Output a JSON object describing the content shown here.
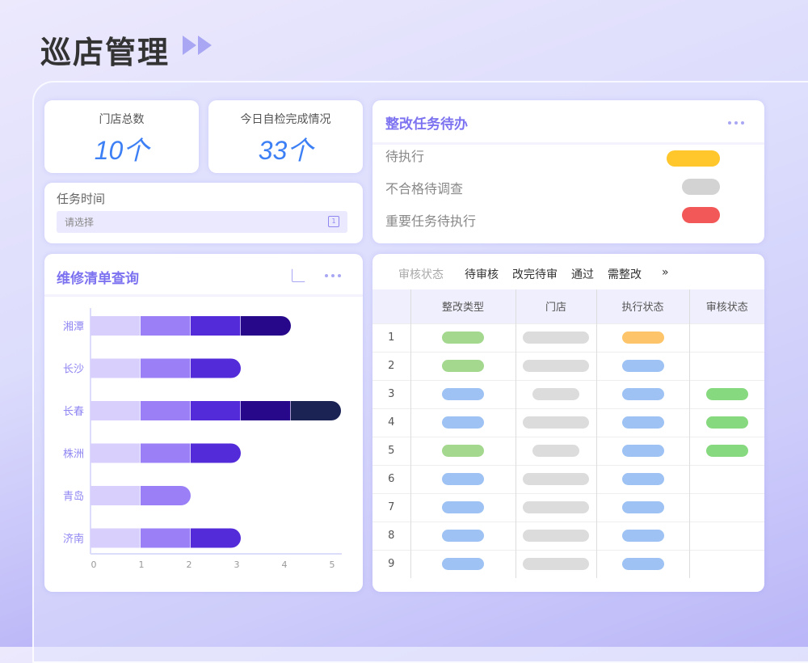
{
  "page": {
    "title": "巡店管理"
  },
  "stats": [
    {
      "label": "门店总数",
      "value": "10个"
    },
    {
      "label": "今日自检完成情况",
      "value": "33个"
    }
  ],
  "task_time": {
    "label": "任务时间",
    "placeholder": "请选择"
  },
  "todo": {
    "title": "整改任务待办",
    "items": [
      {
        "label": "待执行",
        "color": "#ffc72c"
      },
      {
        "label": "不合格待调查",
        "color": "#d3d3d3"
      },
      {
        "label": "重要任务待执行",
        "color": "#f25858"
      }
    ]
  },
  "repair": {
    "title": "维修清单查询"
  },
  "chart_data": {
    "type": "bar",
    "orientation": "horizontal",
    "stacked": true,
    "categories": [
      "湘潭",
      "长沙",
      "长春",
      "株洲",
      "青岛",
      "济南"
    ],
    "values": [
      4,
      3,
      5,
      3,
      2,
      3
    ],
    "segment_colors": [
      "#d8cffc",
      "#9a7ff7",
      "#532bd9",
      "#27088a",
      "#1b2254"
    ],
    "xticks": [
      "0",
      "1",
      "2",
      "3",
      "4",
      "5"
    ],
    "xlim": [
      0,
      5
    ]
  },
  "review": {
    "filter_label": "审核状态",
    "filters": [
      "待审核",
      "改完待审",
      "通过",
      "需整改"
    ],
    "more": "»",
    "columns": [
      "整改类型",
      "门店",
      "执行状态",
      "审核状态"
    ],
    "rows": [
      {
        "index": "1",
        "type": "green",
        "store": "long",
        "exec": "orange",
        "review": ""
      },
      {
        "index": "2",
        "type": "green",
        "store": "long",
        "exec": "blue",
        "review": ""
      },
      {
        "index": "3",
        "type": "blue",
        "store": "short",
        "exec": "blue",
        "review": "green"
      },
      {
        "index": "4",
        "type": "blue",
        "store": "long",
        "exec": "blue",
        "review": "green"
      },
      {
        "index": "5",
        "type": "green",
        "store": "short",
        "exec": "blue",
        "review": "green"
      },
      {
        "index": "6",
        "type": "blue",
        "store": "long",
        "exec": "blue",
        "review": ""
      },
      {
        "index": "7",
        "type": "blue",
        "store": "long",
        "exec": "blue",
        "review": ""
      },
      {
        "index": "8",
        "type": "blue",
        "store": "long",
        "exec": "blue",
        "review": ""
      },
      {
        "index": "9",
        "type": "blue",
        "store": "long",
        "exec": "blue",
        "review": ""
      }
    ],
    "colors": {
      "green": "#a3d88e",
      "blue": "#9dc2f3",
      "orange": "#fdc46a",
      "gray": "#dcdcdc",
      "review_green": "#86d97f"
    }
  }
}
